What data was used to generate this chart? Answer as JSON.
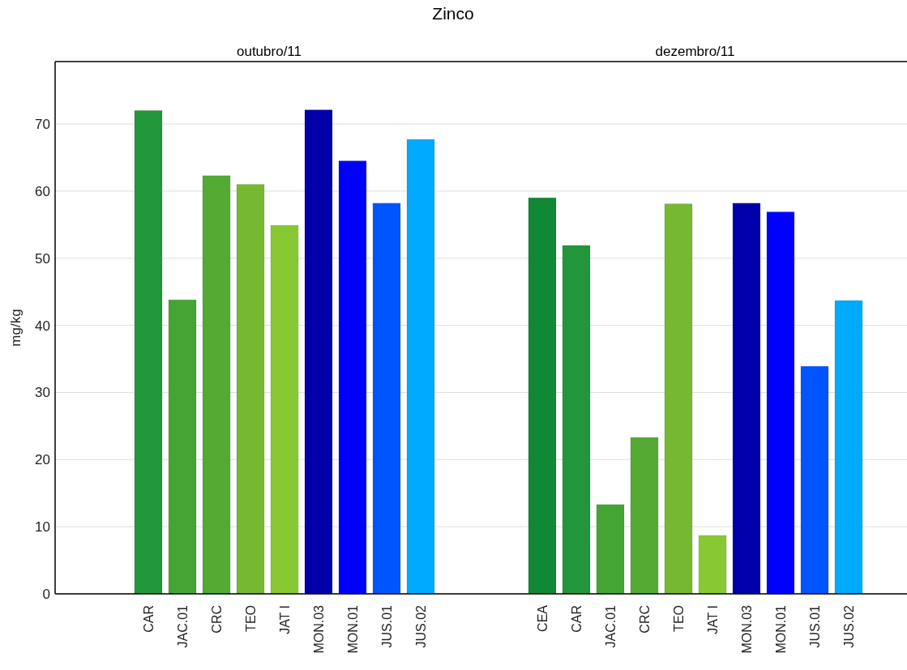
{
  "chart_data": [
    {
      "type": "bar",
      "title": "Zinco",
      "subtitle": "outubro/11",
      "ylabel": "mg/kg",
      "categories": [
        "CAR",
        "JAC.01",
        "CRC",
        "TEO",
        "JAT I",
        "MON.03",
        "MON.01",
        "JUS.01",
        "JUS.02"
      ],
      "values": [
        72.0,
        43.8,
        62.3,
        61.0,
        54.9,
        72.1,
        64.5,
        58.2,
        67.7
      ],
      "colors": [
        "#22963a",
        "#44a535",
        "#55aa33",
        "#77b833",
        "#88c933",
        "#0000aa",
        "#0000ff",
        "#0055ff",
        "#00aaff"
      ],
      "ylim": [
        0,
        79.3
      ],
      "yticks": [
        0,
        10,
        20,
        30,
        40,
        50,
        60,
        70
      ],
      "grid": "y"
    },
    {
      "type": "bar",
      "subtitle": "dezembro/11",
      "categories": [
        "CEA",
        "CAR",
        "JAC.01",
        "CRC",
        "TEO",
        "JAT I",
        "MON.03",
        "MON.01",
        "JUS.01",
        "JUS.02"
      ],
      "values": [
        59.0,
        51.9,
        13.3,
        23.3,
        58.1,
        8.7,
        58.2,
        56.9,
        33.9,
        43.7
      ],
      "colors": [
        "#118833",
        "#22963a",
        "#44a535",
        "#55aa33",
        "#77b833",
        "#88c933",
        "#0000aa",
        "#0000ff",
        "#0055ff",
        "#00aaff"
      ],
      "ylim": [
        0,
        79.3
      ],
      "yticks": [
        0,
        10,
        20,
        30,
        40,
        50,
        60,
        70
      ],
      "grid": "y",
      "tick_labels": "x"
    }
  ]
}
